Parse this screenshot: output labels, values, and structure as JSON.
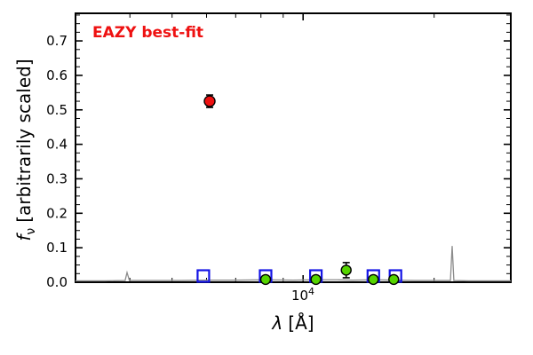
{
  "figure": {
    "background": "#ffffff"
  },
  "chart_data": {
    "type": "scatter",
    "title": "",
    "annotation": "EAZY best-fit",
    "annotation_color": "#ee1111",
    "xlabel": "λ [Å]",
    "xlabel_parts": {
      "symbol": "λ",
      "units": "[Å]"
    },
    "ylabel": "fν [arbitrarily scaled]",
    "ylabel_parts": {
      "symbol": "f",
      "subscript": "ν",
      "units": "[arbitrarily scaled]"
    },
    "xscale": "log",
    "xlim": [
      3000,
      30000
    ],
    "ylim": [
      0,
      0.78
    ],
    "yticks": [
      0,
      0.1,
      0.2,
      0.3,
      0.4,
      0.5,
      0.6,
      0.7
    ],
    "ytick_labels": [
      "0.0",
      "0.1",
      "0.2",
      "0.3",
      "0.4",
      "0.5",
      "0.6",
      "0.7"
    ],
    "xticks": [
      10000
    ],
    "xtick_label": {
      "base": "10",
      "exponent": "4"
    },
    "xticks_minor": [
      3000,
      4000,
      5000,
      6000,
      7000,
      8000,
      9000,
      20000,
      30000
    ],
    "legend": "none",
    "grid": false,
    "series": [
      {
        "name": "model-spectrum",
        "style": "line",
        "color": "#8c8c8c",
        "points": [
          [
            3000,
            0.004
          ],
          [
            3500,
            0.004
          ],
          [
            3900,
            0.005
          ],
          [
            3940,
            0.028
          ],
          [
            3990,
            0.005
          ],
          [
            4500,
            0.005
          ],
          [
            5200,
            0.005
          ],
          [
            6000,
            0.006
          ],
          [
            7000,
            0.006
          ],
          [
            8200,
            0.007
          ],
          [
            9500,
            0.006
          ],
          [
            10700,
            0.007
          ],
          [
            12000,
            0.007
          ],
          [
            13000,
            0.006
          ],
          [
            14500,
            0.007
          ],
          [
            16300,
            0.006
          ],
          [
            18000,
            0.005
          ],
          [
            20000,
            0.005
          ],
          [
            21800,
            0.005
          ],
          [
            22000,
            0.105
          ],
          [
            22200,
            0.005
          ],
          [
            24000,
            0.004
          ],
          [
            27000,
            0.004
          ],
          [
            30000,
            0.004
          ]
        ]
      },
      {
        "name": "model-photometry",
        "style": "open-square",
        "color": "#1414e6",
        "size": 13,
        "points": [
          [
            5900,
            0.018
          ],
          [
            8200,
            0.018
          ],
          [
            10700,
            0.018
          ],
          [
            14500,
            0.018
          ],
          [
            16300,
            0.018
          ]
        ]
      },
      {
        "name": "observed-photometry",
        "style": "circle",
        "color": "#55d400",
        "edge": "#000000",
        "size": 11,
        "points": [
          [
            8200,
            0.008
          ],
          [
            10700,
            0.008
          ],
          [
            12560,
            0.035
          ],
          [
            14500,
            0.008
          ],
          [
            16150,
            0.008
          ]
        ],
        "yerr": [
          0.006,
          0.006,
          0.022,
          0.006,
          0.006
        ]
      },
      {
        "name": "outlier-point",
        "style": "circle",
        "color": "#ee1111",
        "edge": "#000000",
        "size": 12,
        "points": [
          [
            6100,
            0.525
          ]
        ],
        "yerr": [
          0.018
        ]
      }
    ]
  }
}
